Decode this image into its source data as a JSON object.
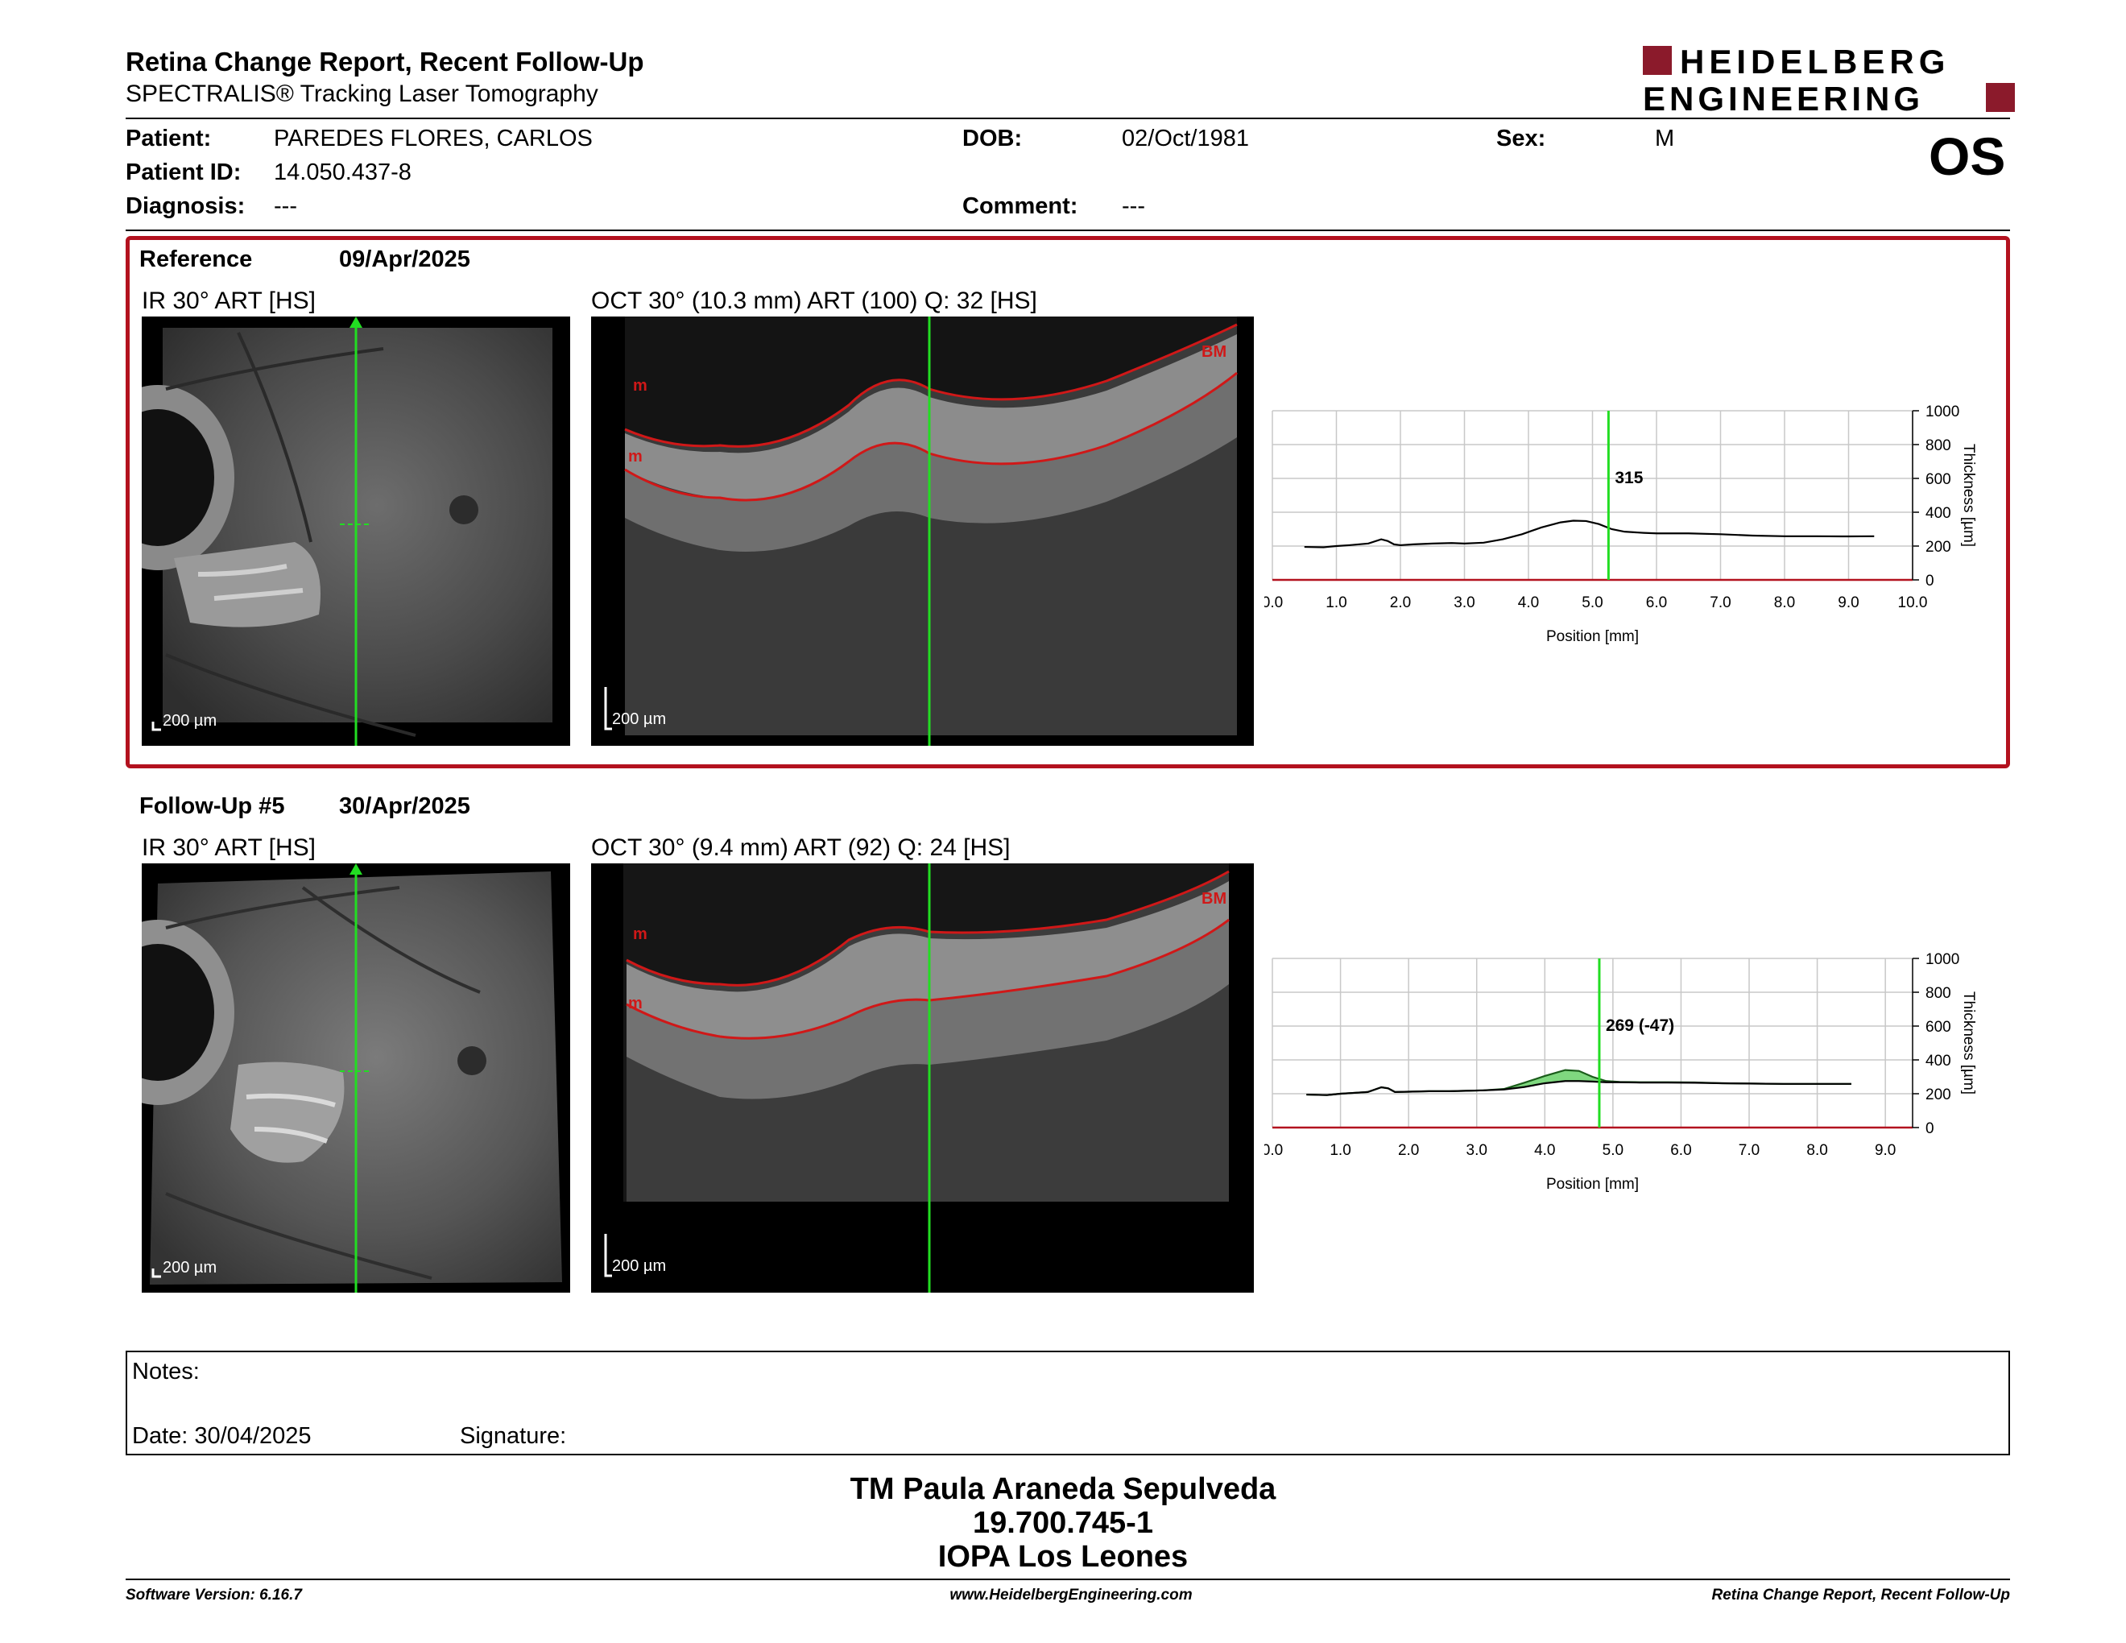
{
  "header": {
    "title": "Retina Change Report, Recent Follow-Up",
    "subtitle": "SPECTRALIS® Tracking Laser Tomography",
    "logo_line1": "HEIDELBERG",
    "logo_line2": "ENGINEERING",
    "brand_color": "#8b1a2b"
  },
  "patient": {
    "name_label": "Patient:",
    "name": "PAREDES FLORES, CARLOS",
    "id_label": "Patient ID:",
    "id": "14.050.437-8",
    "diagnosis_label": "Diagnosis:",
    "diagnosis": "---",
    "dob_label": "DOB:",
    "dob": "02/Oct/1981",
    "comment_label": "Comment:",
    "comment": "---",
    "sex_label": "Sex:",
    "sex": "M",
    "eye": "OS"
  },
  "reference": {
    "label": "Reference",
    "date": "09/Apr/2025",
    "ir_caption": "IR 30° ART [HS]",
    "oct_caption": "OCT 30° (10.3 mm) ART (100) Q: 32 [HS]",
    "scale_ir": "200 µm",
    "scale_oct": "200 µm",
    "layer_top": "m",
    "layer_bottom": "m",
    "layer_bm": "BM"
  },
  "followup": {
    "label": "Follow-Up #5",
    "date": "30/Apr/2025",
    "ir_caption": "IR 30° ART [HS]",
    "oct_caption": "OCT 30° (9.4 mm) ART (92) Q: 24 [HS]",
    "scale_ir": "200 µm",
    "scale_oct": "200 µm",
    "layer_top": "m",
    "layer_bottom": "m",
    "layer_bm": "BM"
  },
  "chart_data": [
    {
      "type": "line",
      "xlabel": "Position [mm]",
      "ylabel": "Thickness [µm]",
      "xlim": [
        0,
        10
      ],
      "ylim": [
        0,
        1000
      ],
      "x_ticks": [
        "0.0",
        "1.0",
        "2.0",
        "3.0",
        "4.0",
        "5.0",
        "6.0",
        "7.0",
        "8.0",
        "9.0",
        "10.0"
      ],
      "y_ticks": [
        "0",
        "200",
        "400",
        "600",
        "800",
        "1000"
      ],
      "grid": true,
      "marker_position": 5.25,
      "marker_label": "315",
      "series": [
        {
          "x": [
            0.5,
            0.8,
            1.0,
            1.2,
            1.5,
            1.7,
            1.8,
            1.9,
            2.0,
            2.2,
            2.5,
            2.8,
            3.0,
            3.3,
            3.6,
            3.9,
            4.2,
            4.5,
            4.7,
            4.9,
            5.1,
            5.3,
            5.5,
            5.8,
            6.0,
            6.5,
            7.0,
            7.5,
            8.0,
            8.5,
            9.0,
            9.4
          ],
          "y": [
            195,
            193,
            200,
            205,
            215,
            240,
            230,
            210,
            205,
            210,
            215,
            218,
            215,
            220,
            240,
            270,
            310,
            340,
            350,
            348,
            330,
            300,
            285,
            278,
            275,
            275,
            270,
            262,
            258,
            258,
            257,
            258
          ]
        }
      ]
    },
    {
      "type": "area",
      "xlabel": "Position [mm]",
      "ylabel": "Thickness [µm]",
      "xlim": [
        0,
        9.4
      ],
      "ylim": [
        0,
        1000
      ],
      "x_ticks": [
        "0.0",
        "1.0",
        "2.0",
        "3.0",
        "4.0",
        "5.0",
        "6.0",
        "7.0",
        "8.0",
        "9.0"
      ],
      "y_ticks": [
        "0",
        "200",
        "400",
        "600",
        "800",
        "1000"
      ],
      "grid": true,
      "marker_position": 4.8,
      "marker_label": "269 (-47)",
      "change_color": "#7fd87f",
      "series": [
        {
          "x": [
            0.5,
            0.8,
            1.0,
            1.2,
            1.4,
            1.6,
            1.7,
            1.8,
            2.0,
            2.3,
            2.6,
            2.9,
            3.1,
            3.4,
            3.7,
            4.0,
            4.3,
            4.5,
            4.7,
            4.9,
            5.1,
            5.4,
            5.8,
            6.2,
            6.6,
            7.0,
            7.5,
            8.0,
            8.5
          ],
          "y": [
            195,
            192,
            200,
            205,
            210,
            238,
            232,
            210,
            212,
            215,
            215,
            218,
            220,
            228,
            265,
            305,
            340,
            335,
            300,
            275,
            270,
            268,
            268,
            267,
            262,
            260,
            258,
            258,
            258
          ]
        },
        {
          "x": [
            0.5,
            0.8,
            1.0,
            1.2,
            1.4,
            1.6,
            1.7,
            1.8,
            2.0,
            2.3,
            2.6,
            2.9,
            3.1,
            3.4,
            3.7,
            4.0,
            4.3,
            4.5,
            4.7,
            4.9,
            5.1,
            5.4,
            5.8,
            6.2,
            6.6,
            7.0,
            7.5,
            8.0,
            8.5
          ],
          "y": [
            195,
            192,
            200,
            205,
            210,
            238,
            232,
            210,
            212,
            215,
            215,
            218,
            220,
            225,
            240,
            262,
            275,
            275,
            272,
            268,
            268,
            266,
            266,
            265,
            262,
            260,
            258,
            258,
            258
          ]
        }
      ]
    }
  ],
  "notes": {
    "notes_label": "Notes:",
    "date_label": "Date: 30/04/2025",
    "signature_label": "Signature:"
  },
  "signer": {
    "name": "TM Paula Araneda Sepulveda",
    "id": "19.700.745-1",
    "org": "IOPA Los Leones"
  },
  "footer": {
    "version": "Software Version: 6.16.7",
    "url": "www.HeidelbergEngineering.com",
    "report": "Retina Change Report, Recent Follow-Up"
  }
}
